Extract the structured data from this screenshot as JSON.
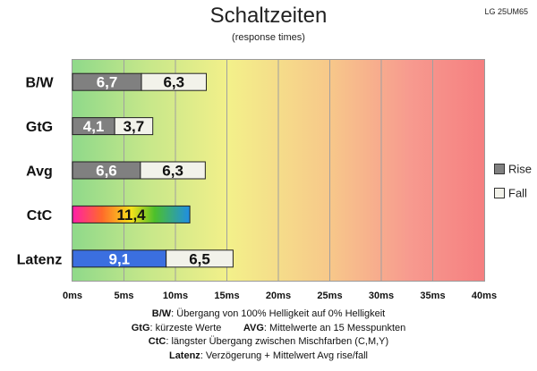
{
  "model": "LG 25UM65",
  "chart_data": {
    "type": "bar",
    "title": "Schaltzeiten",
    "subtitle": "(response times)",
    "orientation": "horizontal",
    "stacked": true,
    "xlim": [
      0,
      40
    ],
    "x_ticks": [
      "0ms",
      "5ms",
      "10ms",
      "15ms",
      "20ms",
      "25ms",
      "30ms",
      "35ms",
      "40ms"
    ],
    "categories": [
      "B/W",
      "GtG",
      "Avg",
      "CtC",
      "Latenz"
    ],
    "series": [
      {
        "name": "Rise",
        "values": [
          6.7,
          4.1,
          6.6,
          null,
          null
        ],
        "labels": [
          "6,7",
          "4,1",
          "6,6",
          "",
          ""
        ]
      },
      {
        "name": "Fall",
        "values": [
          6.3,
          3.7,
          6.3,
          null,
          6.5
        ],
        "labels": [
          "6,3",
          "3,7",
          "6,3",
          "",
          "6,5"
        ]
      }
    ],
    "extra_bars": [
      {
        "category": "CtC",
        "value": 11.4,
        "label": "11,4",
        "style": "rainbow"
      },
      {
        "category": "Latenz",
        "value": 9.1,
        "label": "9,1",
        "style": "blue"
      }
    ],
    "legend": [
      "Rise",
      "Fall"
    ],
    "legend_position": "right",
    "grid": true
  },
  "colors": {
    "rise": "#808080",
    "fall": "#f2f2ea",
    "latency": "#3b6fe0"
  },
  "notes": [
    {
      "bold": "B/W",
      "text": ":  Übergang von 100% Helligkeit auf 0% Helligkeit"
    },
    {
      "bold": "GtG",
      "text": ": kürzeste  Werte",
      "bold2": "AVG",
      "text2": ": Mittelwerte  an 15 Messpunkten"
    },
    {
      "bold": "CtC",
      "text": ": längster Übergang  zwischen Mischfarben (C,M,Y)"
    },
    {
      "bold": "Latenz",
      "text": ": Verzögerung  + Mittelwert Avg rise/fall"
    }
  ]
}
